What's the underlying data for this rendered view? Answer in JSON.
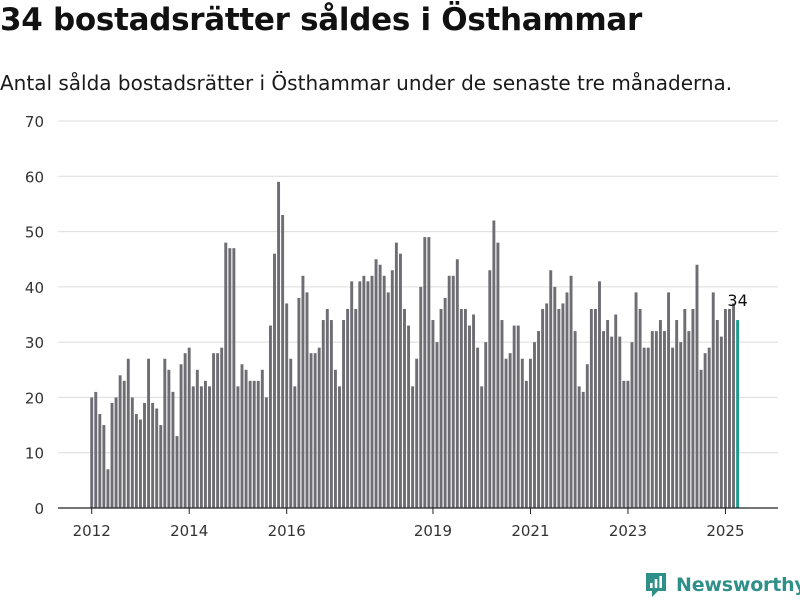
{
  "header": {
    "title": "34 bostadsrätter såldes i Östhammar",
    "subtitle": "Antal sålda bostadsrätter i Östhammar under de senaste tre månaderna."
  },
  "brand": {
    "name": "Newsworthy",
    "icon": "newsworthy-logo-icon",
    "color": "#2f8f89"
  },
  "chart_data": {
    "type": "bar",
    "bar_color": "#6e6d74",
    "highlight_color": "#1f9a91",
    "ylim": [
      0,
      70
    ],
    "yticks": [
      0,
      10,
      20,
      30,
      40,
      50,
      60,
      70
    ],
    "grid": true,
    "xticks": [
      {
        "label": "2012",
        "x": 2012.0
      },
      {
        "label": "2014",
        "x": 2014.0
      },
      {
        "label": "2016",
        "x": 2016.0
      },
      {
        "label": "2019",
        "x": 2019.0
      },
      {
        "label": "2021",
        "x": 2021.0
      },
      {
        "label": "2023",
        "x": 2023.0
      },
      {
        "label": "2025",
        "x": 2025.0
      }
    ],
    "x_start": 2012.0,
    "step": 0.08333,
    "values": [
      20,
      21,
      17,
      15,
      7,
      19,
      20,
      24,
      23,
      27,
      20,
      17,
      16,
      19,
      27,
      19,
      18,
      15,
      27,
      25,
      21,
      13,
      26,
      28,
      29,
      22,
      25,
      22,
      23,
      22,
      28,
      28,
      29,
      48,
      47,
      47,
      22,
      26,
      25,
      23,
      23,
      23,
      25,
      20,
      33,
      46,
      59,
      53,
      37,
      27,
      22,
      38,
      42,
      39,
      28,
      28,
      29,
      34,
      36,
      34,
      25,
      22,
      34,
      36,
      41,
      36,
      41,
      42,
      41,
      42,
      45,
      44,
      42,
      39,
      43,
      48,
      46,
      36,
      33,
      22,
      27,
      40,
      49,
      49,
      34,
      30,
      36,
      38,
      42,
      42,
      45,
      36,
      36,
      33,
      35,
      29,
      22,
      30,
      43,
      52,
      48,
      34,
      27,
      28,
      33,
      33,
      27,
      23,
      27,
      30,
      32,
      36,
      37,
      43,
      40,
      36,
      37,
      39,
      42,
      32,
      22,
      21,
      26,
      36,
      36,
      41,
      32,
      34,
      31,
      35,
      31,
      23,
      23,
      30,
      39,
      36,
      29,
      29,
      32,
      32,
      34,
      32,
      39,
      29,
      34,
      30,
      36,
      32,
      36,
      44,
      25,
      28,
      29,
      39,
      34,
      31,
      36,
      36,
      37,
      34
    ],
    "highlight_last": true,
    "annotation": {
      "label": "34",
      "value": 34
    }
  }
}
